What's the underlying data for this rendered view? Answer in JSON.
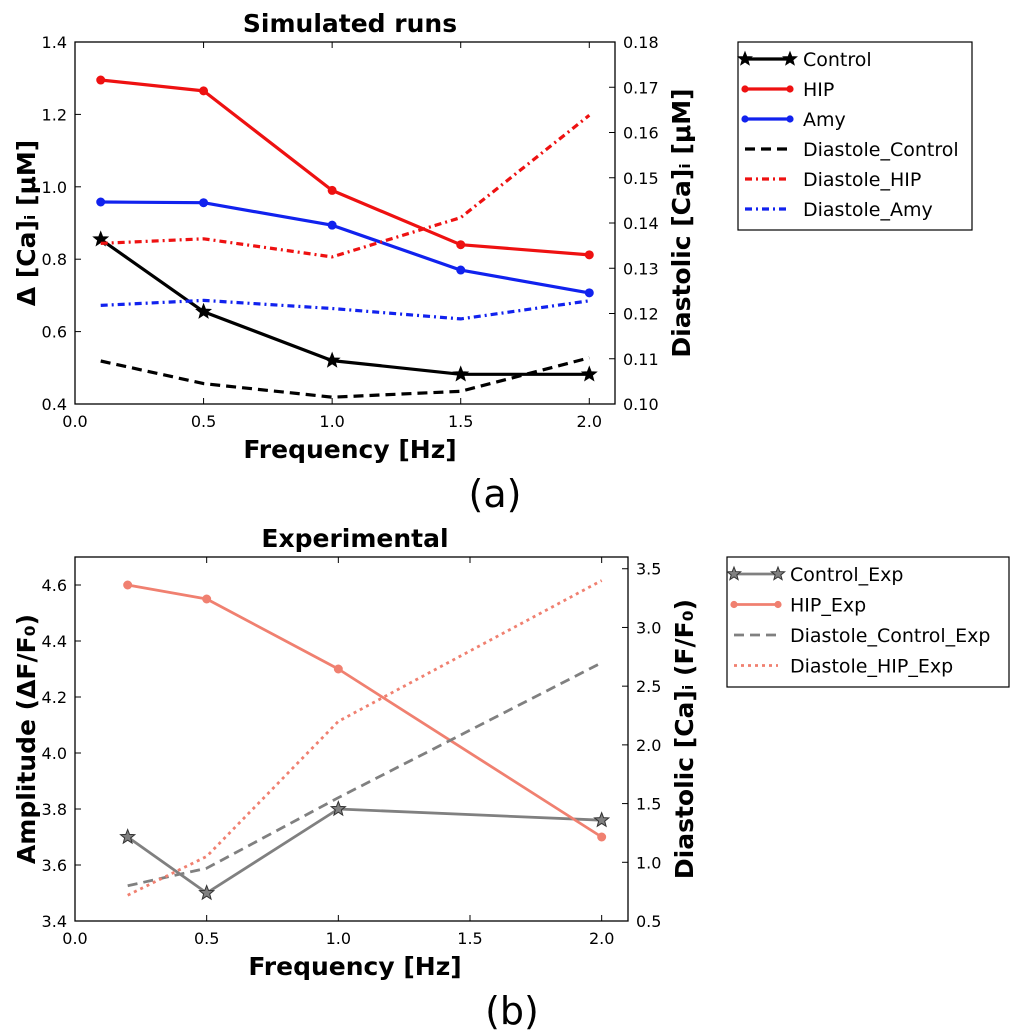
{
  "chart_data": [
    {
      "id": "a",
      "type": "line",
      "title": "Simulated runs",
      "xlabel": "Frequency [Hz]",
      "ylabel": "Δ [Ca]ᵢ [μM]",
      "ylabel_right": "Diastolic [Ca]ᵢ [μM]",
      "panel_label": "(a)",
      "xlim": [
        0.0,
        2.1
      ],
      "ylim": [
        0.4,
        1.4
      ],
      "ylim_right": [
        0.1,
        0.18
      ],
      "xticks": [
        "0.0",
        "0.5",
        "1.0",
        "1.5",
        "2.0"
      ],
      "yticks": [
        "0.4",
        "0.6",
        "0.8",
        "1.0",
        "1.2",
        "1.4"
      ],
      "yticks_right": [
        "0.10",
        "0.11",
        "0.12",
        "0.13",
        "0.14",
        "0.15",
        "0.16",
        "0.17",
        "0.18"
      ],
      "series": [
        {
          "name": "Control",
          "axis": "left",
          "color": "#000000",
          "style": "solid",
          "marker": "star",
          "x": [
            0.1,
            0.5,
            1.0,
            1.5,
            2.0
          ],
          "values": [
            0.855,
            0.655,
            0.52,
            0.482,
            0.482
          ]
        },
        {
          "name": "HIP",
          "axis": "left",
          "color": "#ee1111",
          "style": "solid",
          "marker": "dot",
          "x": [
            0.1,
            0.5,
            1.0,
            1.5,
            2.0
          ],
          "values": [
            1.295,
            1.265,
            0.99,
            0.84,
            0.812
          ]
        },
        {
          "name": "Amy",
          "axis": "left",
          "color": "#1122ee",
          "style": "solid",
          "marker": "dot",
          "x": [
            0.1,
            0.5,
            1.0,
            1.5,
            2.0
          ],
          "values": [
            0.958,
            0.956,
            0.894,
            0.77,
            0.707
          ]
        },
        {
          "name": "Diastole_Control",
          "axis": "right",
          "color": "#000000",
          "style": "dash",
          "marker": "none",
          "x": [
            0.1,
            0.5,
            1.0,
            1.5,
            2.0
          ],
          "values": [
            0.1095,
            0.1045,
            0.1015,
            0.1028,
            0.1102
          ]
        },
        {
          "name": "Diastole_HIP",
          "axis": "right",
          "color": "#ee1111",
          "style": "dashdot",
          "marker": "none",
          "x": [
            0.1,
            0.5,
            1.0,
            1.5,
            2.0
          ],
          "values": [
            0.1355,
            0.1365,
            0.1325,
            0.1412,
            0.1638
          ]
        },
        {
          "name": "Diastole_Amy",
          "axis": "right",
          "color": "#1122ee",
          "style": "dashdot",
          "marker": "none",
          "x": [
            0.1,
            0.5,
            1.0,
            1.5,
            2.0
          ],
          "values": [
            0.1218,
            0.1229,
            0.1211,
            0.1188,
            0.1228
          ]
        }
      ]
    },
    {
      "id": "b",
      "type": "line",
      "title": "Experimental",
      "xlabel": "Frequency [Hz]",
      "ylabel": "Amplitude (ΔF/F₀)",
      "ylabel_right": "Diastolic [Ca]ᵢ (F/F₀)",
      "panel_label": "(b)",
      "xlim": [
        0.0,
        2.1
      ],
      "ylim": [
        3.4,
        4.7
      ],
      "ylim_right": [
        0.5,
        3.6
      ],
      "xticks": [
        "0.0",
        "0.5",
        "1.0",
        "1.5",
        "2.0"
      ],
      "yticks": [
        "3.4",
        "3.6",
        "3.8",
        "4.0",
        "4.2",
        "4.4",
        "4.6"
      ],
      "yticks_right": [
        "0.5",
        "1.0",
        "1.5",
        "2.0",
        "2.5",
        "3.0",
        "3.5"
      ],
      "series": [
        {
          "name": "Control_Exp",
          "axis": "left",
          "color": "#808080",
          "style": "solid",
          "marker": "star",
          "x": [
            0.2,
            0.5,
            1.0,
            2.0
          ],
          "values": [
            3.7,
            3.5,
            3.8,
            3.76
          ]
        },
        {
          "name": "HIP_Exp",
          "axis": "left",
          "color": "#f08070",
          "style": "solid",
          "marker": "dot",
          "x": [
            0.2,
            0.5,
            1.0,
            2.0
          ],
          "values": [
            4.6,
            4.55,
            4.3,
            3.7
          ]
        },
        {
          "name": "Diastole_Control_Exp",
          "axis": "right",
          "color": "#808080",
          "style": "dash",
          "marker": "none",
          "x": [
            0.2,
            0.5,
            1.0,
            2.0
          ],
          "values": [
            0.8,
            0.95,
            1.55,
            2.7
          ]
        },
        {
          "name": "Diastole_HIP_Exp",
          "axis": "right",
          "color": "#f08070",
          "style": "dot",
          "marker": "none",
          "x": [
            0.2,
            0.5,
            1.0,
            2.0
          ],
          "values": [
            0.72,
            1.05,
            2.2,
            3.4
          ]
        }
      ]
    }
  ]
}
